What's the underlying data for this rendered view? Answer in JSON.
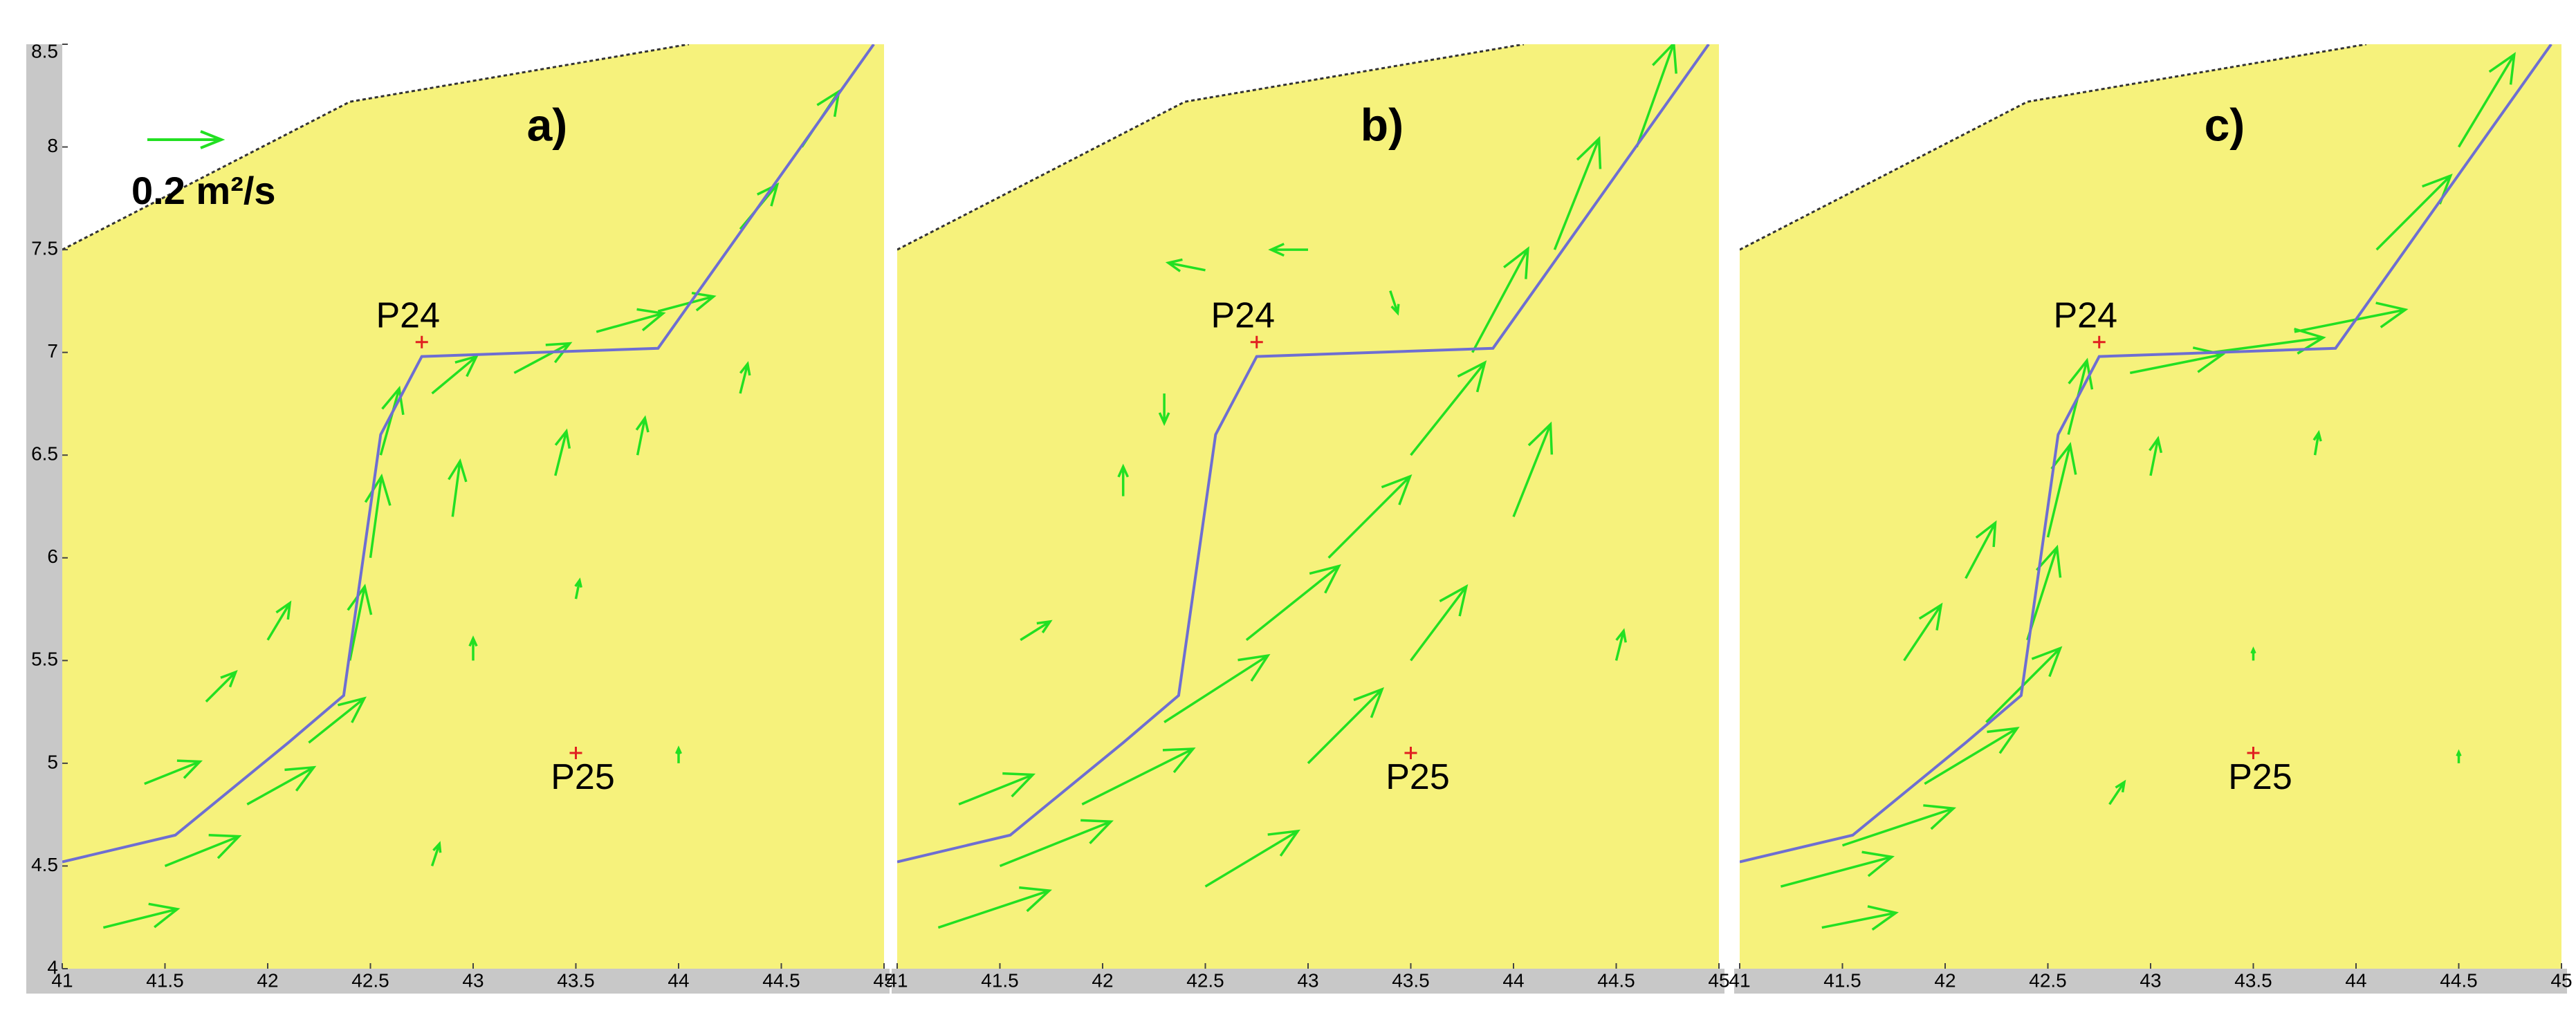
{
  "chart_data": [
    {
      "type": "quiver",
      "title": "a)",
      "xlim": [
        41,
        45
      ],
      "ylim": [
        4,
        8.5
      ],
      "xticks": [
        41,
        41.5,
        42,
        42.5,
        43,
        43.5,
        44,
        44.5,
        45
      ],
      "yticks": [
        4,
        4.5,
        5,
        5.5,
        6,
        6.5,
        7,
        7.5,
        8,
        8.5
      ],
      "reference": {
        "value": 0.2,
        "label": "0.2 m²/s"
      },
      "boundary": {
        "x": [
          41,
          42.4,
          44.05
        ],
        "y": [
          7.5,
          8.22,
          8.5
        ]
      },
      "line": {
        "x": [
          41,
          41.55,
          42.1,
          42.37,
          42.55,
          42.75,
          43.9,
          44.95
        ],
        "y": [
          4.52,
          4.65,
          5.1,
          5.33,
          6.6,
          6.98,
          7.02,
          8.5
        ]
      },
      "points": [
        {
          "name": "P24",
          "x": 42.75,
          "y": 7.05
        },
        {
          "name": "P25",
          "x": 43.5,
          "y": 5.05
        }
      ],
      "color": "#22e022",
      "line_color": "#6e6ed2",
      "x": [
        41.2,
        41.5,
        41.9,
        42.2,
        42.4,
        42.5,
        42.55,
        42.8,
        43.2,
        43.6,
        43.9,
        44.3,
        44.6,
        42.9,
        43.4,
        43.8,
        41.7,
        42.0,
        43.0,
        44.0,
        41.4,
        43.5,
        44.3,
        42.8
      ],
      "y": [
        4.2,
        4.5,
        4.8,
        5.1,
        5.5,
        6.0,
        6.5,
        6.8,
        6.9,
        7.1,
        7.2,
        7.6,
        8.0,
        6.2,
        6.4,
        6.5,
        5.3,
        5.6,
        5.5,
        5.0,
        4.9,
        5.8,
        6.8,
        4.5
      ],
      "u": [
        0.2,
        0.2,
        0.18,
        0.15,
        0.04,
        0.03,
        0.05,
        0.12,
        0.15,
        0.18,
        0.15,
        0.1,
        0.1,
        0.02,
        0.03,
        0.02,
        0.08,
        0.06,
        0.0,
        0.0,
        0.15,
        0.01,
        0.02,
        0.02
      ],
      "v": [
        0.05,
        0.08,
        0.1,
        0.12,
        0.2,
        0.22,
        0.18,
        0.1,
        0.08,
        0.05,
        0.04,
        0.12,
        0.15,
        0.15,
        0.12,
        0.1,
        0.08,
        0.1,
        0.06,
        0.04,
        0.06,
        0.05,
        0.08,
        0.06
      ]
    },
    {
      "type": "quiver",
      "title": "b)",
      "xlim": [
        41,
        45
      ],
      "ylim": [
        4,
        8.5
      ],
      "xticks": [
        41,
        41.5,
        42,
        42.5,
        43,
        43.5,
        44,
        44.5,
        45
      ],
      "boundary": {
        "x": [
          41,
          42.4,
          44.05
        ],
        "y": [
          7.5,
          8.22,
          8.5
        ]
      },
      "line": {
        "x": [
          41,
          41.55,
          42.1,
          42.37,
          42.55,
          42.75,
          43.9,
          44.95
        ],
        "y": [
          4.52,
          4.65,
          5.1,
          5.33,
          6.6,
          6.98,
          7.02,
          8.5
        ]
      },
      "points": [
        {
          "name": "P24",
          "x": 42.75,
          "y": 7.05
        },
        {
          "name": "P25",
          "x": 43.5,
          "y": 5.05
        }
      ],
      "color": "#22e022",
      "line_color": "#6e6ed2",
      "x": [
        41.2,
        41.5,
        41.9,
        42.3,
        42.7,
        43.1,
        43.5,
        43.8,
        44.2,
        44.6,
        42.5,
        43.0,
        43.5,
        44.0,
        42.5,
        42.3,
        43.0,
        43.4,
        41.6,
        42.1,
        44.5,
        41.3
      ],
      "y": [
        4.2,
        4.5,
        4.8,
        5.2,
        5.6,
        6.0,
        6.5,
        7.0,
        7.5,
        8.0,
        4.4,
        5.0,
        5.5,
        6.2,
        7.4,
        6.8,
        7.5,
        7.3,
        5.6,
        6.3,
        5.5,
        4.8
      ],
      "u": [
        0.3,
        0.3,
        0.3,
        0.28,
        0.25,
        0.22,
        0.2,
        0.15,
        0.12,
        0.1,
        0.25,
        0.2,
        0.15,
        0.1,
        -0.1,
        0.0,
        -0.1,
        0.02,
        0.08,
        0.0,
        0.02,
        0.2
      ],
      "v": [
        0.1,
        0.12,
        0.15,
        0.18,
        0.2,
        0.22,
        0.25,
        0.28,
        0.3,
        0.28,
        0.15,
        0.2,
        0.2,
        0.25,
        0.02,
        -0.08,
        0.0,
        -0.06,
        0.05,
        0.08,
        0.08,
        0.08
      ]
    },
    {
      "type": "quiver",
      "title": "c)",
      "xlim": [
        41,
        45
      ],
      "ylim": [
        4,
        8.5
      ],
      "xticks": [
        41,
        41.5,
        42,
        42.5,
        43,
        43.5,
        44,
        44.5,
        45
      ],
      "boundary": {
        "x": [
          41,
          42.4,
          44.05
        ],
        "y": [
          7.5,
          8.22,
          8.5
        ]
      },
      "line": {
        "x": [
          41,
          41.55,
          42.1,
          42.37,
          42.55,
          42.75,
          43.9,
          44.95
        ],
        "y": [
          4.52,
          4.65,
          5.1,
          5.33,
          6.6,
          6.98,
          7.02,
          8.5
        ]
      },
      "points": [
        {
          "name": "P24",
          "x": 42.75,
          "y": 7.05
        },
        {
          "name": "P25",
          "x": 43.5,
          "y": 5.05
        }
      ],
      "color": "#22e022",
      "line_color": "#6e6ed2",
      "x": [
        41.2,
        41.5,
        41.9,
        42.2,
        42.4,
        42.5,
        42.6,
        42.9,
        43.3,
        43.7,
        44.1,
        44.5,
        41.8,
        42.1,
        43.0,
        43.8,
        43.5,
        44.5,
        41.4,
        42.8
      ],
      "y": [
        4.4,
        4.6,
        4.9,
        5.2,
        5.6,
        6.1,
        6.6,
        6.9,
        7.0,
        7.1,
        7.5,
        8.0,
        5.5,
        5.9,
        6.4,
        6.5,
        5.5,
        5.0,
        4.2,
        4.8
      ],
      "u": [
        0.3,
        0.3,
        0.25,
        0.2,
        0.08,
        0.06,
        0.05,
        0.25,
        0.3,
        0.3,
        0.2,
        0.15,
        0.1,
        0.08,
        0.02,
        0.01,
        0.0,
        0.0,
        0.2,
        0.04
      ],
      "v": [
        0.08,
        0.1,
        0.15,
        0.2,
        0.25,
        0.25,
        0.2,
        0.05,
        0.04,
        0.06,
        0.2,
        0.25,
        0.15,
        0.15,
        0.1,
        0.06,
        0.03,
        0.03,
        0.04,
        0.06
      ]
    }
  ]
}
